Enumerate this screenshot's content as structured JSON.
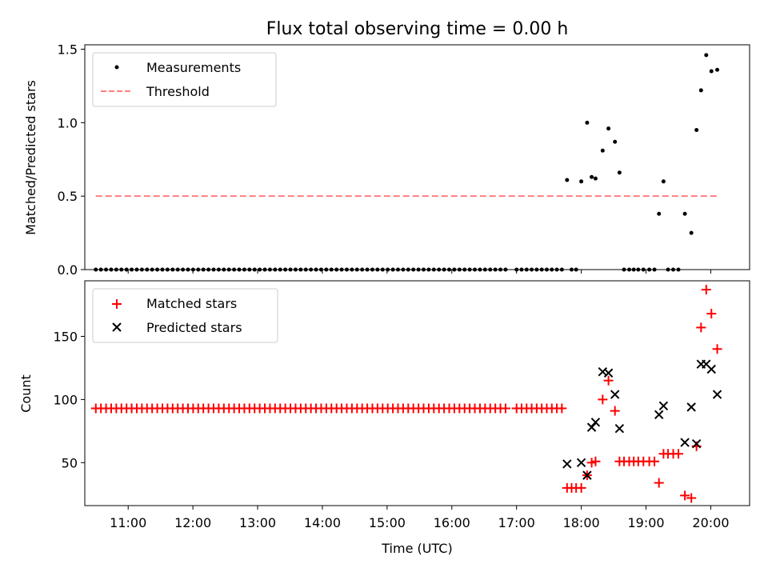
{
  "figure_title": "Flux total observing time = 0.00 h",
  "x_tick_labels": [
    "11:00",
    "12:00",
    "13:00",
    "14:00",
    "15:00",
    "16:00",
    "17:00",
    "18:00",
    "19:00",
    "20:00"
  ],
  "chart_data": [
    {
      "type": "scatter",
      "title": "Flux total observing time = 0.00 h",
      "ylabel": "Matched/Predicted stars",
      "xlabel": "",
      "x_units": "hours (UTC)",
      "xlim": [
        10.33,
        20.6
      ],
      "ylim": [
        0,
        1.53
      ],
      "yticks": [
        0.0,
        0.5,
        1.0,
        1.5
      ],
      "ytick_labels": [
        "0.0",
        "0.5",
        "1.0",
        "1.5"
      ],
      "legend_position": "upper-left",
      "threshold": {
        "name": "Threshold",
        "y": 0.5,
        "x_range": [
          10.5,
          20.1
        ],
        "color": "#ff7f7f",
        "style": "dashed"
      },
      "series": [
        {
          "name": "Measurements",
          "marker": "dot",
          "color": "#000000",
          "zero_run_1": {
            "x_start": 10.5,
            "x_end": 16.83,
            "count": 81,
            "y": 0
          },
          "zero_run_2": {
            "x_start": 17.0,
            "x_end": 17.7,
            "count": 10,
            "y": 0
          },
          "points": [
            [
              17.78,
              0.61
            ],
            [
              17.85,
              0
            ],
            [
              17.92,
              0
            ],
            [
              18.0,
              0.6
            ],
            [
              18.09,
              1.0
            ],
            [
              18.16,
              0.63
            ],
            [
              18.22,
              0.62
            ],
            [
              18.33,
              0.81
            ],
            [
              18.42,
              0.96
            ],
            [
              18.52,
              0.87
            ],
            [
              18.59,
              0.66
            ],
            [
              18.66,
              0
            ],
            [
              18.74,
              0
            ],
            [
              18.81,
              0
            ],
            [
              18.88,
              0
            ],
            [
              18.96,
              0
            ],
            [
              19.05,
              0
            ],
            [
              19.13,
              0
            ],
            [
              19.2,
              0.38
            ],
            [
              19.27,
              0.6
            ],
            [
              19.34,
              0
            ],
            [
              19.42,
              0
            ],
            [
              19.5,
              0
            ],
            [
              19.6,
              0.38
            ],
            [
              19.7,
              0.25
            ],
            [
              19.78,
              0.95
            ],
            [
              19.85,
              1.22
            ],
            [
              19.93,
              1.46
            ],
            [
              20.01,
              1.35
            ],
            [
              20.1,
              1.36
            ]
          ]
        }
      ]
    },
    {
      "type": "scatter",
      "ylabel": "Count",
      "xlabel": "Time (UTC)",
      "x_units": "hours (UTC)",
      "xlim": [
        10.33,
        20.6
      ],
      "ylim": [
        16,
        194
      ],
      "yticks": [
        50,
        100,
        150
      ],
      "ytick_labels": [
        "50",
        "100",
        "150"
      ],
      "legend_position": "upper-left",
      "series": [
        {
          "name": "Matched stars",
          "marker": "plus",
          "color": "#ff0000",
          "flat_run_1": {
            "x_start": 10.5,
            "x_end": 16.83,
            "count": 81,
            "y": 93
          },
          "flat_run_2": {
            "x_start": 17.0,
            "x_end": 17.7,
            "count": 10,
            "y": 93
          },
          "points": [
            [
              17.78,
              30
            ],
            [
              17.85,
              30
            ],
            [
              17.92,
              30
            ],
            [
              18.0,
              30
            ],
            [
              18.09,
              40
            ],
            [
              18.16,
              50
            ],
            [
              18.22,
              51
            ],
            [
              18.33,
              100
            ],
            [
              18.42,
              115
            ],
            [
              18.52,
              91
            ],
            [
              18.59,
              51
            ],
            [
              18.66,
              51
            ],
            [
              18.74,
              51
            ],
            [
              18.81,
              51
            ],
            [
              18.88,
              51
            ],
            [
              18.96,
              51
            ],
            [
              19.05,
              51
            ],
            [
              19.13,
              51
            ],
            [
              19.2,
              34
            ],
            [
              19.27,
              57
            ],
            [
              19.34,
              57
            ],
            [
              19.42,
              57
            ],
            [
              19.5,
              57
            ],
            [
              19.6,
              24
            ],
            [
              19.7,
              22
            ],
            [
              19.78,
              63
            ],
            [
              19.85,
              157
            ],
            [
              19.93,
              187
            ],
            [
              20.01,
              168
            ],
            [
              20.1,
              140
            ]
          ]
        },
        {
          "name": "Predicted stars",
          "marker": "x",
          "color": "#000000",
          "points": [
            [
              17.78,
              49
            ],
            [
              18.0,
              50
            ],
            [
              18.09,
              40
            ],
            [
              18.16,
              78
            ],
            [
              18.22,
              82
            ],
            [
              18.33,
              122
            ],
            [
              18.42,
              121
            ],
            [
              18.52,
              104
            ],
            [
              18.59,
              77
            ],
            [
              19.2,
              88
            ],
            [
              19.27,
              95
            ],
            [
              19.6,
              66
            ],
            [
              19.7,
              94
            ],
            [
              19.78,
              65
            ],
            [
              19.85,
              128
            ],
            [
              19.93,
              128
            ],
            [
              20.01,
              124
            ],
            [
              20.1,
              104
            ]
          ]
        }
      ]
    }
  ]
}
